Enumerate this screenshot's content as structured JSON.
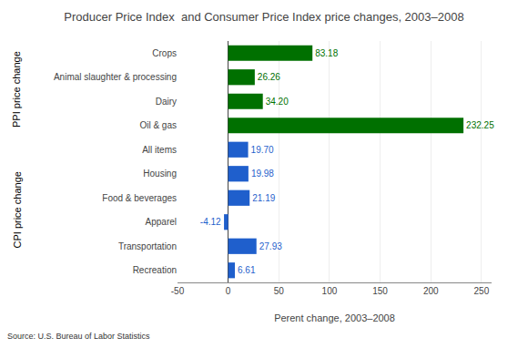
{
  "chart_data": {
    "type": "bar",
    "orientation": "horizontal",
    "title": "Producer Price Index  and Consumer Price Index price changes, 2003–2008",
    "xlabel": "Perent change, 2003–2008",
    "categories": [
      "Crops",
      "Animal slaughter & processing",
      "Dairy",
      "Oil & gas",
      "All items",
      "Housing",
      "Food & beverages",
      "Apparel",
      "Transportation",
      "Recreation"
    ],
    "series": [
      {
        "name": "PPI price change",
        "color": "#007000",
        "values": [
          83.18,
          26.26,
          34.2,
          232.25,
          null,
          null,
          null,
          null,
          null,
          null
        ],
        "value_labels": [
          "83.18",
          "26.26",
          "34.20",
          "232.25",
          null,
          null,
          null,
          null,
          null,
          null
        ]
      },
      {
        "name": "CPI price change",
        "color": "#1f5fcc",
        "values": [
          null,
          null,
          null,
          null,
          19.7,
          19.98,
          21.19,
          -4.12,
          27.93,
          6.61
        ],
        "value_labels": [
          null,
          null,
          null,
          null,
          "19.70",
          "19.98",
          "21.19",
          "-4.12",
          "27.93",
          "6.61"
        ]
      }
    ],
    "data_labels": true,
    "xlim": [
      -50,
      260
    ],
    "xticks": [
      -50,
      0,
      50,
      100,
      150,
      200,
      250
    ],
    "grid": true,
    "annotations": [
      "Source: U.S. Bureau of Labor Statistics"
    ]
  }
}
